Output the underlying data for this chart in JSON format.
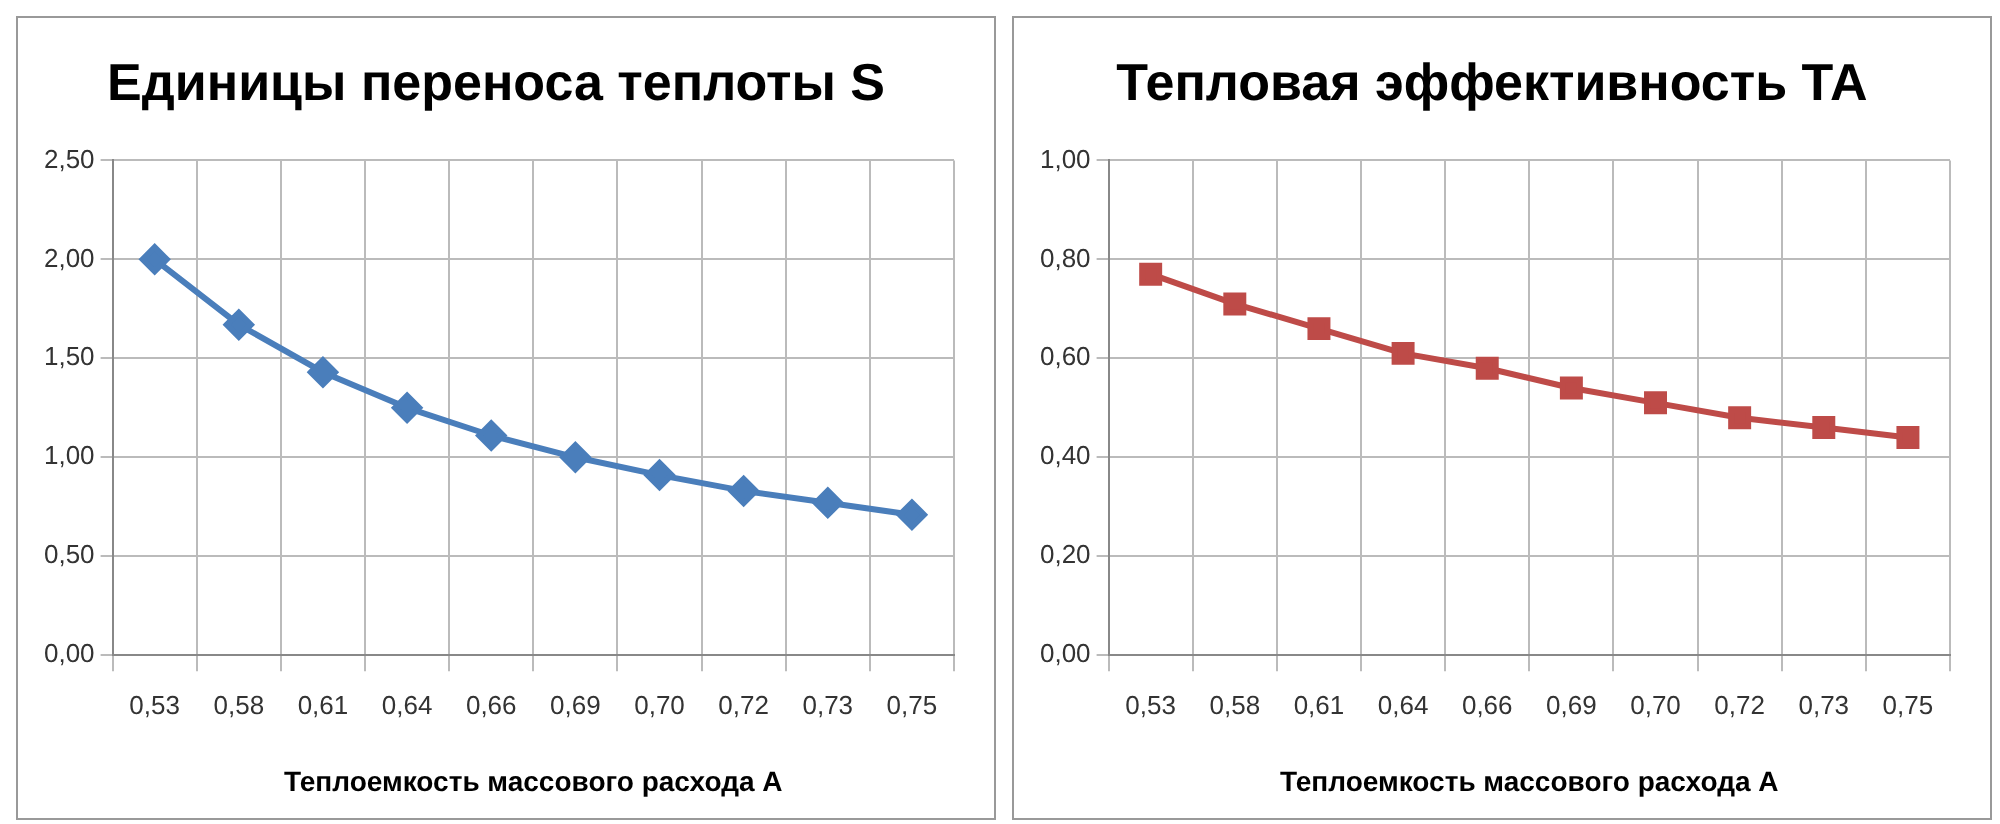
{
  "chart_data": [
    {
      "type": "line",
      "title": "Единицы переноса теплоты S",
      "xlabel": "Теплоемкость массового расхода А",
      "categories": [
        "0,53",
        "0,58",
        "0,61",
        "0,64",
        "0,66",
        "0,69",
        "0,70",
        "0,72",
        "0,73",
        "0,75"
      ],
      "series": [
        {
          "color": "#4a7ebb",
          "values": [
            2.0,
            1.67,
            1.43,
            1.25,
            1.11,
            1.0,
            0.91,
            0.83,
            0.77,
            0.71
          ]
        }
      ],
      "ylim": [
        0,
        2.5
      ],
      "yticks": [
        {
          "value": 0,
          "label": "0,00"
        },
        {
          "value": 0.5,
          "label": "0,50"
        },
        {
          "value": 1,
          "label": "1,00"
        },
        {
          "value": 1.5,
          "label": "1,50"
        },
        {
          "value": 2,
          "label": "2,00"
        },
        {
          "value": 2.5,
          "label": "2,50"
        }
      ],
      "grid": true,
      "legend": false,
      "marker": "diamond",
      "line_style": "solid"
    },
    {
      "type": "line",
      "title": "Тепловая эффективность ТА",
      "xlabel": "Теплоемкость массового расхода А",
      "categories": [
        "0,53",
        "0,58",
        "0,61",
        "0,64",
        "0,66",
        "0,69",
        "0,70",
        "0,72",
        "0,73",
        "0,75"
      ],
      "series": [
        {
          "color": "#be4b48",
          "values": [
            0.77,
            0.71,
            0.66,
            0.61,
            0.58,
            0.54,
            0.51,
            0.48,
            0.46,
            0.44
          ]
        }
      ],
      "ylim": [
        0,
        1
      ],
      "yticks": [
        {
          "value": 0,
          "label": "0,00"
        },
        {
          "value": 0.2,
          "label": "0,20"
        },
        {
          "value": 0.4,
          "label": "0,40"
        },
        {
          "value": 0.6,
          "label": "0,60"
        },
        {
          "value": 0.8,
          "label": "0,80"
        },
        {
          "value": 1,
          "label": "1,00"
        }
      ],
      "grid": true,
      "legend": false,
      "marker": "square",
      "line_style": "solid"
    }
  ]
}
